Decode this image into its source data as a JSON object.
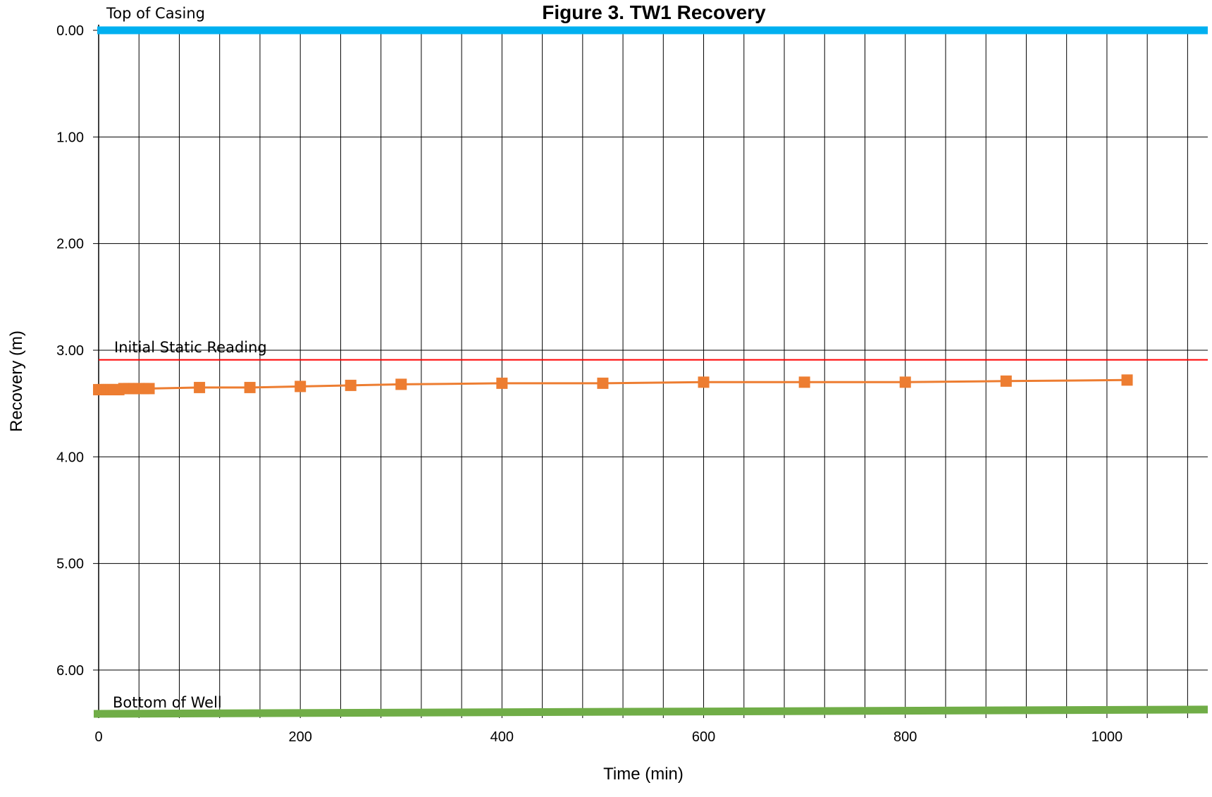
{
  "chart_data": {
    "type": "line",
    "title": "Figure 3. TW1 Recovery",
    "xlabel": "Time (min)",
    "ylabel": "Recovery (m)",
    "xlim": [
      0,
      1100
    ],
    "ylim": [
      6.45,
      0
    ],
    "y_inverted": true,
    "x_ticks": [
      "0",
      "200",
      "400",
      "600",
      "800",
      "1000"
    ],
    "x_tick_values": [
      0,
      200,
      400,
      600,
      800,
      1000
    ],
    "y_ticks": [
      "0.00",
      "1.00",
      "2.00",
      "3.00",
      "4.00",
      "5.00",
      "6.00"
    ],
    "y_tick_values": [
      0,
      1,
      2,
      3,
      4,
      5,
      6
    ],
    "x_gridline_step": 40,
    "grid": true,
    "series": [
      {
        "color": "#ED7D31",
        "marker": "square",
        "x": [
          0,
          2,
          4,
          6,
          8,
          10,
          12,
          14,
          16,
          18,
          20,
          25,
          30,
          35,
          40,
          45,
          50,
          100,
          150,
          200,
          250,
          300,
          400,
          500,
          600,
          700,
          800,
          900,
          1020
        ],
        "y": [
          3.37,
          3.37,
          3.37,
          3.37,
          3.37,
          3.37,
          3.37,
          3.37,
          3.37,
          3.37,
          3.37,
          3.36,
          3.36,
          3.36,
          3.36,
          3.36,
          3.36,
          3.35,
          3.35,
          3.34,
          3.33,
          3.32,
          3.31,
          3.31,
          3.3,
          3.3,
          3.3,
          3.29,
          3.28
        ]
      }
    ],
    "reference_lines": [
      {
        "label": "Top of Casing",
        "y": 0.0,
        "color": "#00B0F0"
      },
      {
        "label": "Initial Static Reading",
        "y": 3.09,
        "color": "#FF0000"
      },
      {
        "label": "Bottom of Well",
        "y_start": 6.41,
        "y_end": 6.37,
        "color": "#70AD47"
      }
    ]
  }
}
